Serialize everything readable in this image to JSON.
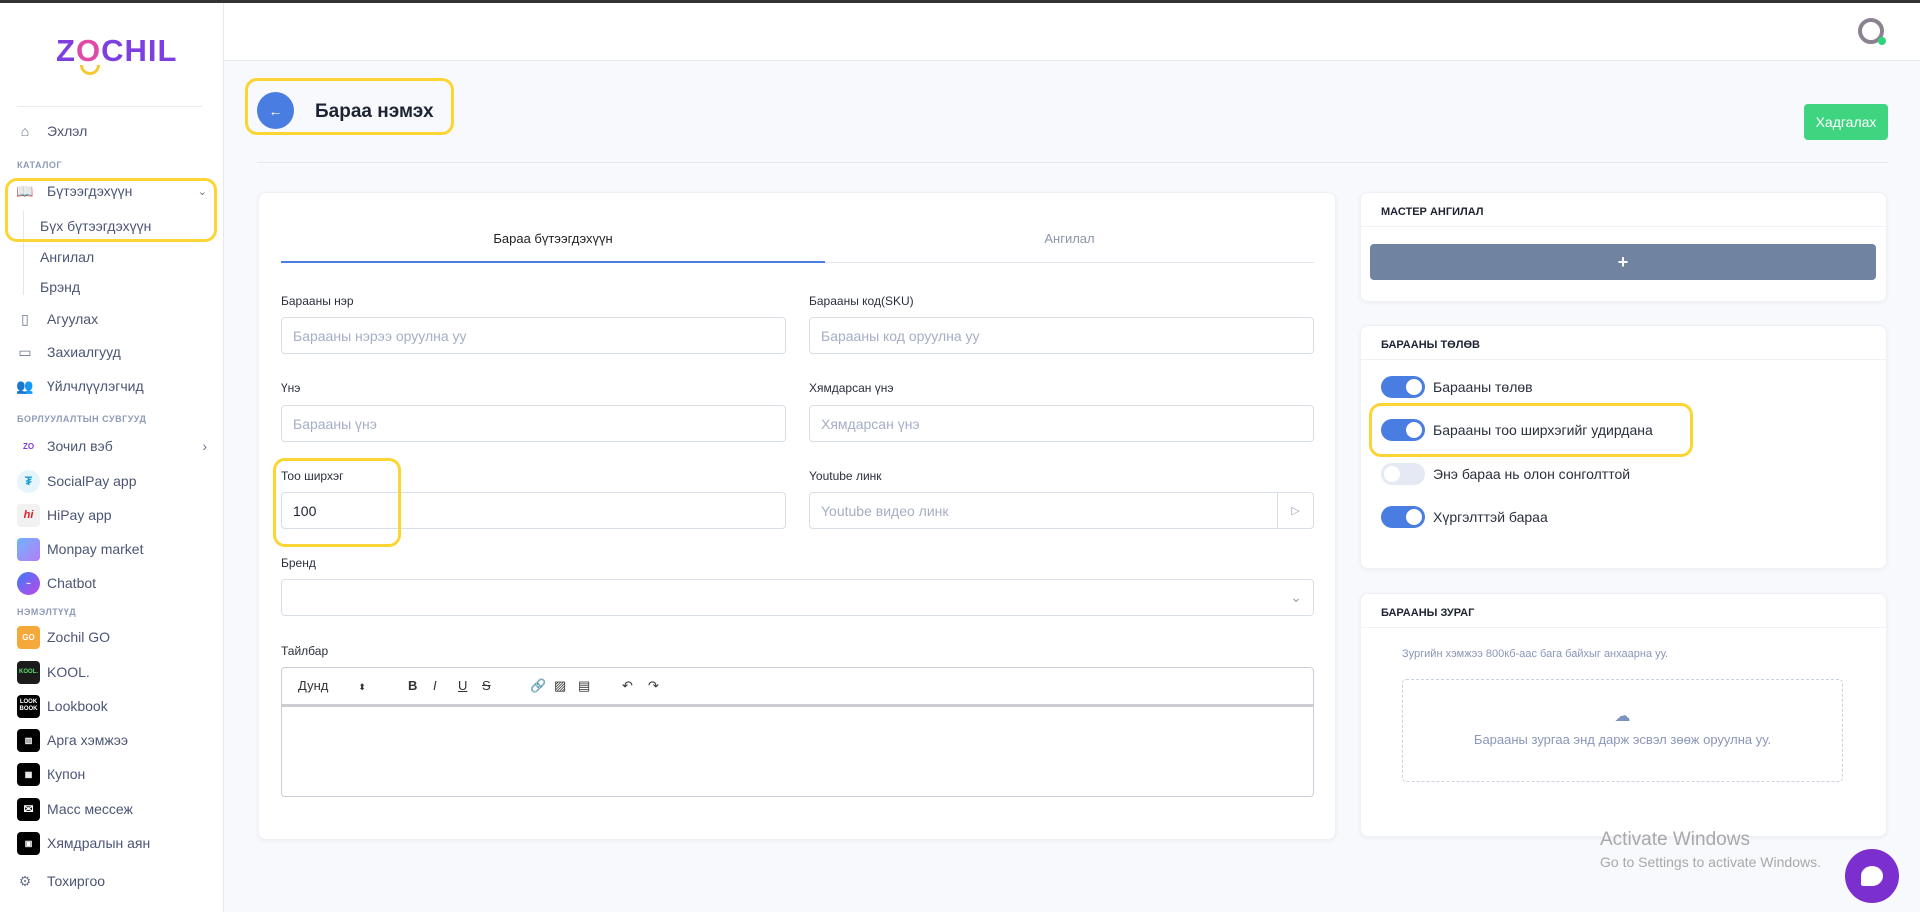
{
  "brand": {
    "logo": "ZOCHIL"
  },
  "sidebar": {
    "home": "Эхлэл",
    "section_catalog": "КАТАЛОГ",
    "products": "Бүтээгдэхүүн",
    "sub": [
      "Бүх бүтээгдэхүүн",
      "Ангилал",
      "Брэнд"
    ],
    "main": [
      "Агуулах",
      "Захиалгууд",
      "Үйлчлүүлэгчид"
    ],
    "section_channels": "БОРЛУУЛАЛТЫН СУВГУУД",
    "channels": [
      "Зочил вэб",
      "SocialPay app",
      "HiPay app",
      "Monpay market",
      "Chatbot"
    ],
    "section_addons": "НЭМЭЛТҮҮД",
    "addons": [
      "Zochil GO",
      "KOOL.",
      "Lookbook",
      "Арга хэмжээ",
      "Купон",
      "Масс мессеж",
      "Хямдралын аян"
    ],
    "settings": "Тохиргоо"
  },
  "header": {
    "title": "Бараа нэмэх",
    "save": "Хадгалах"
  },
  "form": {
    "tabs": [
      "Бараа бүтээгдэхүүн",
      "Ангилал"
    ],
    "name_label": "Барааны нэр",
    "name_ph": "Барааны нэрээ оруулна уу",
    "sku_label": "Барааны код(SKU)",
    "sku_ph": "Барааны код оруулна уу",
    "price_label": "Үнэ",
    "price_ph": "Барааны үнэ",
    "sale_label": "Хямдарсан үнэ",
    "sale_ph": "Хямдарсан үнэ",
    "qty_label": "Тоо ширхэг",
    "qty_value": "100",
    "yt_label": "Youtube линк",
    "yt_ph": "Youtube видео линк",
    "brand_label": "Бренд",
    "desc_label": "Тайлбар",
    "toolbar_size": "Дунд"
  },
  "master": {
    "title": "МАСТЕР АНГИЛАЛ",
    "add": "+"
  },
  "status": {
    "title": "БАРААНЫ ТӨЛӨВ",
    "toggles": [
      {
        "label": "Барааны төлөв",
        "on": true
      },
      {
        "label": "Барааны тоо ширхэгийг удирдана",
        "on": true
      },
      {
        "label": "Энэ бараа нь олон сонголттой",
        "on": false
      },
      {
        "label": "Хүргэлттэй бараа",
        "on": true
      }
    ]
  },
  "image": {
    "title": "БАРААНЫ ЗУРАГ",
    "note": "Зургийн хэмжээ 800кб-аас бага байхыг анхаарна уу.",
    "drop": "Барааны зургаа энд дарж эсвэл зөөж оруулна уу."
  },
  "watermark": {
    "title": "Activate Windows",
    "sub": "Go to Settings to activate Windows."
  },
  "colors": {
    "accent": "#4a7de2",
    "save": "#3fd47f",
    "highlight": "#fcd535",
    "chat": "#7b2fcf"
  }
}
